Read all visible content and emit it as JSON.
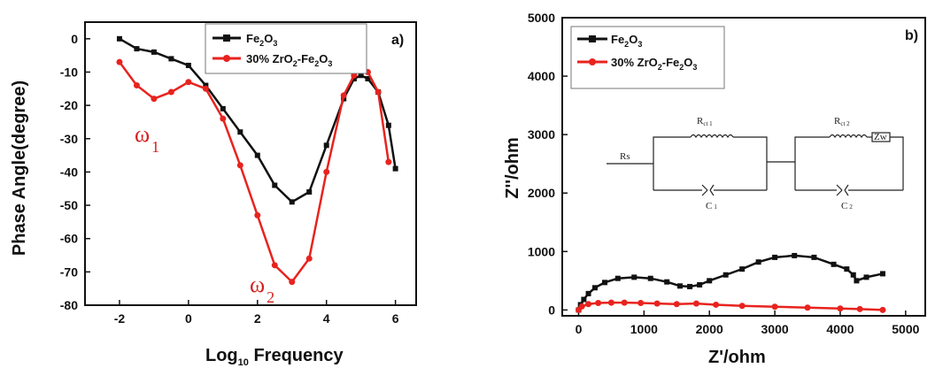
{
  "chart_data": [
    {
      "type": "line",
      "panel_label": "a)",
      "xlabel": "Log",
      "xlabel_sub": "10",
      "xlabel_suffix": " Frequency",
      "ylabel": "Phase Angle(degree)",
      "xlim": [
        -3,
        6.6
      ],
      "ylim": [
        -80,
        5
      ],
      "xticks": [
        -2,
        0,
        2,
        4,
        6
      ],
      "yticks": [
        0,
        -10,
        -20,
        -30,
        -40,
        -50,
        -60,
        -70,
        -80
      ],
      "legend_position": "top-right",
      "annotations": [
        {
          "text": "ω",
          "sub": "1",
          "color": "#d62020"
        },
        {
          "text": "ω",
          "sub": "2",
          "color": "#d62020"
        }
      ],
      "series": [
        {
          "name": "Fe2O3",
          "color": "#111111",
          "marker": "square",
          "x": [
            -2.0,
            -1.5,
            -1.0,
            -0.5,
            0.0,
            0.5,
            1.0,
            1.5,
            2.0,
            2.5,
            3.0,
            3.5,
            4.0,
            4.5,
            4.8,
            5.0,
            5.2,
            5.5,
            5.8,
            6.0
          ],
          "y": [
            0,
            -3,
            -4,
            -6,
            -8,
            -14,
            -21,
            -28,
            -35,
            -44,
            -49,
            -46,
            -32,
            -18,
            -12,
            -11,
            -12,
            -16,
            -26,
            -39
          ]
        },
        {
          "name": "30% ZrO2-Fe2O3",
          "color": "#e8231e",
          "marker": "circle",
          "x": [
            -2.0,
            -1.5,
            -1.0,
            -0.5,
            0.0,
            0.5,
            1.0,
            1.5,
            2.0,
            2.5,
            3.0,
            3.5,
            4.0,
            4.5,
            4.8,
            5.0,
            5.2,
            5.5,
            5.8
          ],
          "y": [
            -7,
            -14,
            -18,
            -16,
            -13,
            -15,
            -24,
            -38,
            -53,
            -68,
            -73,
            -66,
            -40,
            -17,
            -11,
            -9,
            -10,
            -16,
            -37
          ]
        }
      ],
      "legend_texts": {
        "s1": [
          "Fe",
          "2",
          "O",
          "3",
          ""
        ],
        "s2": [
          "30% ZrO",
          "2",
          "-Fe",
          "2",
          "O",
          "3"
        ]
      }
    },
    {
      "type": "line",
      "panel_label": "b)",
      "xlabel": "Z'/ohm",
      "ylabel": "Z''/ohm",
      "xlim": [
        -250,
        5300
      ],
      "ylim": [
        -100,
        5000
      ],
      "xticks": [
        0,
        1000,
        2000,
        3000,
        4000,
        5000
      ],
      "yticks": [
        0,
        1000,
        2000,
        3000,
        4000,
        5000
      ],
      "legend_position": "top-left",
      "series": [
        {
          "name": "Fe2O3",
          "color": "#111111",
          "marker": "square",
          "x": [
            0,
            30,
            80,
            150,
            250,
            400,
            600,
            850,
            1100,
            1350,
            1550,
            1700,
            1850,
            2000,
            2250,
            2500,
            2750,
            3000,
            3300,
            3600,
            3900,
            4100,
            4200,
            4250,
            4400,
            4650
          ],
          "y": [
            0,
            90,
            180,
            280,
            380,
            470,
            540,
            560,
            540,
            480,
            410,
            400,
            430,
            500,
            600,
            700,
            820,
            900,
            930,
            900,
            780,
            700,
            600,
            500,
            560,
            620
          ]
        },
        {
          "name": "30% ZrO2-Fe2O3",
          "color": "#e8231e",
          "marker": "circle",
          "x": [
            0,
            50,
            150,
            300,
            500,
            700,
            950,
            1200,
            1500,
            1800,
            2100,
            2500,
            3000,
            3500,
            4000,
            4300,
            4650
          ],
          "y": [
            0,
            60,
            100,
            120,
            125,
            125,
            120,
            110,
            100,
            110,
            90,
            70,
            55,
            40,
            25,
            15,
            0
          ]
        }
      ],
      "legend_texts": {
        "s1": [
          "Fe",
          "2",
          "O",
          "3",
          ""
        ],
        "s2": [
          "30% ZrO",
          "2",
          "-Fe",
          "2",
          "O",
          "3"
        ]
      },
      "inset_circuit": {
        "labels": [
          "Rs",
          "R",
          "ct 1",
          "C",
          "1",
          "R",
          "ct 2",
          "Zw",
          "C",
          "2"
        ]
      }
    }
  ]
}
